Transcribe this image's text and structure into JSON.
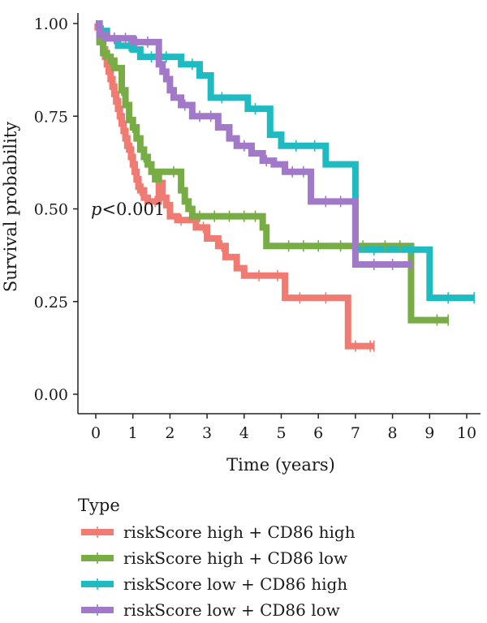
{
  "chart_data": {
    "type": "line",
    "subtype": "kaplan-meier",
    "title": "",
    "xlabel": "Time (years)",
    "ylabel": "Survival probability",
    "xlim": [
      0,
      10.5
    ],
    "ylim": [
      0,
      1.04
    ],
    "x_ticks": [
      0,
      1,
      2,
      3,
      4,
      5,
      6,
      7,
      8,
      9,
      10
    ],
    "y_ticks": [
      0,
      0.25,
      0.5,
      0.75,
      1.0
    ],
    "y_tick_labels": [
      "0.00",
      "0.25",
      "0.50",
      "0.75",
      "1.00"
    ],
    "grid": false,
    "annotation": {
      "italic": "p",
      "rest": "<0.001",
      "x": 0.0,
      "y": 0.5
    },
    "legend": {
      "title": "Type",
      "placement": "bottom"
    },
    "series": [
      {
        "name": "riskScore high + CD86 high",
        "color": "#F07B72",
        "x": [
          0,
          0.05,
          0.1,
          0.15,
          0.2,
          0.25,
          0.3,
          0.35,
          0.4,
          0.45,
          0.5,
          0.55,
          0.6,
          0.65,
          0.7,
          0.75,
          0.8,
          0.85,
          0.9,
          0.95,
          1.0,
          1.05,
          1.1,
          1.15,
          1.2,
          1.3,
          1.4,
          1.5,
          1.7,
          1.8,
          1.9,
          2.0,
          2.2,
          2.7,
          3.0,
          3.3,
          3.5,
          3.8,
          4.0,
          4.2,
          4.6,
          5.1,
          6.8,
          7.5
        ],
        "y": [
          1.0,
          0.99,
          0.97,
          0.95,
          0.93,
          0.91,
          0.89,
          0.87,
          0.85,
          0.83,
          0.81,
          0.79,
          0.77,
          0.75,
          0.73,
          0.71,
          0.69,
          0.67,
          0.66,
          0.64,
          0.62,
          0.6,
          0.58,
          0.56,
          0.55,
          0.53,
          0.52,
          0.52,
          0.57,
          0.53,
          0.51,
          0.48,
          0.47,
          0.45,
          0.42,
          0.4,
          0.37,
          0.34,
          0.32,
          0.32,
          0.32,
          0.26,
          0.13,
          0.13
        ],
        "censor_x": [
          0.3,
          0.6,
          0.9,
          1.2,
          1.6,
          2.3,
          2.9,
          3.4,
          4.4,
          4.9,
          5.5,
          6.2,
          7.0,
          7.4,
          7.5
        ]
      },
      {
        "name": "riskScore high + CD86 low",
        "color": "#78AC44",
        "x": [
          0,
          0.1,
          0.2,
          0.3,
          0.4,
          0.5,
          0.7,
          0.8,
          0.9,
          1.0,
          1.1,
          1.2,
          1.3,
          1.4,
          1.5,
          1.6,
          1.7,
          1.8,
          2.0,
          2.3,
          2.4,
          2.5,
          2.6,
          4.5,
          4.6,
          8.5,
          9.5
        ],
        "y": [
          1.0,
          0.95,
          0.92,
          0.91,
          0.9,
          0.88,
          0.82,
          0.78,
          0.74,
          0.72,
          0.69,
          0.66,
          0.64,
          0.62,
          0.6,
          0.58,
          0.6,
          0.6,
          0.6,
          0.55,
          0.52,
          0.5,
          0.48,
          0.45,
          0.4,
          0.2,
          0.2
        ],
        "censor_x": [
          0.4,
          0.7,
          1.0,
          1.3,
          2.1,
          2.8,
          3.2,
          3.6,
          4.0,
          4.3,
          5.2,
          5.6,
          6.0,
          6.6,
          7.2,
          7.8,
          8.2,
          9.2,
          9.5
        ]
      },
      {
        "name": "riskScore low + CD86 high",
        "color": "#1EBCC2",
        "x": [
          0,
          0.1,
          0.3,
          0.6,
          1.0,
          1.2,
          2.0,
          2.3,
          2.8,
          3.0,
          3.1,
          3.9,
          4.1,
          4.7,
          5.0,
          6.2,
          6.8,
          7.0,
          8.0,
          8.9,
          9.0,
          10.2
        ],
        "y": [
          1.0,
          0.98,
          0.96,
          0.94,
          0.93,
          0.91,
          0.91,
          0.89,
          0.86,
          0.86,
          0.8,
          0.8,
          0.77,
          0.7,
          0.67,
          0.62,
          0.62,
          0.39,
          0.39,
          0.39,
          0.26,
          0.26
        ],
        "censor_x": [
          0.2,
          0.5,
          0.9,
          1.5,
          1.9,
          2.6,
          3.4,
          4.3,
          5.4,
          5.9,
          7.5,
          8.5,
          9.5,
          10.2
        ]
      },
      {
        "name": "riskScore low + CD86 low",
        "color": "#A278C8",
        "x": [
          0,
          0.1,
          0.3,
          1.0,
          1.3,
          1.7,
          1.8,
          1.9,
          2.0,
          2.1,
          2.3,
          2.6,
          3.3,
          3.6,
          3.8,
          4.2,
          4.5,
          4.8,
          5.1,
          5.8,
          6.8,
          7.0,
          8.5
        ],
        "y": [
          1.0,
          0.97,
          0.96,
          0.95,
          0.95,
          0.89,
          0.87,
          0.85,
          0.82,
          0.8,
          0.78,
          0.75,
          0.72,
          0.69,
          0.67,
          0.65,
          0.63,
          0.62,
          0.6,
          0.52,
          0.52,
          0.35,
          0.35
        ],
        "censor_x": [
          0.2,
          0.5,
          0.8,
          1.1,
          1.4,
          2.4,
          2.8,
          3.1,
          4.0,
          4.6,
          5.3,
          5.6,
          6.2,
          6.6,
          7.5,
          8.0,
          8.5
        ]
      }
    ]
  }
}
